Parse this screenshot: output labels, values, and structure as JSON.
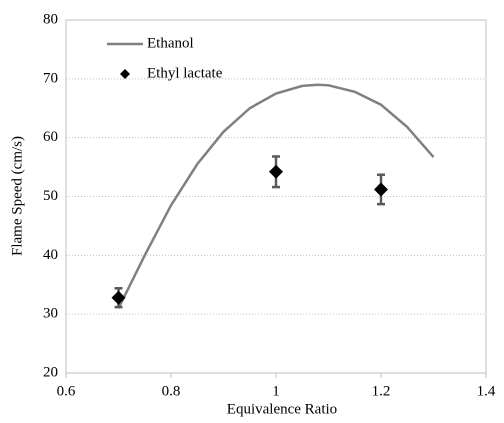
{
  "chart_data": {
    "type": "line",
    "xlabel": "Equivalence Ratio",
    "ylabel": "Flame Speed (cm/s)",
    "xlim": [
      0.6,
      1.4
    ],
    "xticks": [
      0.6,
      0.8,
      1,
      1.2,
      1.4
    ],
    "ylim": [
      20,
      80
    ],
    "yticks": [
      20,
      30,
      40,
      50,
      60,
      70,
      80
    ],
    "grid": true,
    "legend": "upper left",
    "series": [
      {
        "name": "Ethanol",
        "type": "line",
        "color": "#808080",
        "x": [
          0.7,
          0.75,
          0.8,
          0.85,
          0.9,
          0.95,
          1.0,
          1.05,
          1.08,
          1.1,
          1.15,
          1.2,
          1.25,
          1.3
        ],
        "values": [
          31,
          40,
          48.5,
          55.5,
          61,
          65,
          67.5,
          68.8,
          69,
          68.9,
          67.8,
          65.6,
          61.8,
          56.7
        ]
      },
      {
        "name": "Ethyl lactate",
        "type": "scatter",
        "color": "#000000",
        "error_color": "#595959",
        "x": [
          0.7,
          1.0,
          1.2
        ],
        "values": [
          32.8,
          54.2,
          51.2
        ],
        "errors": [
          1.6,
          2.6,
          2.5
        ]
      }
    ]
  }
}
